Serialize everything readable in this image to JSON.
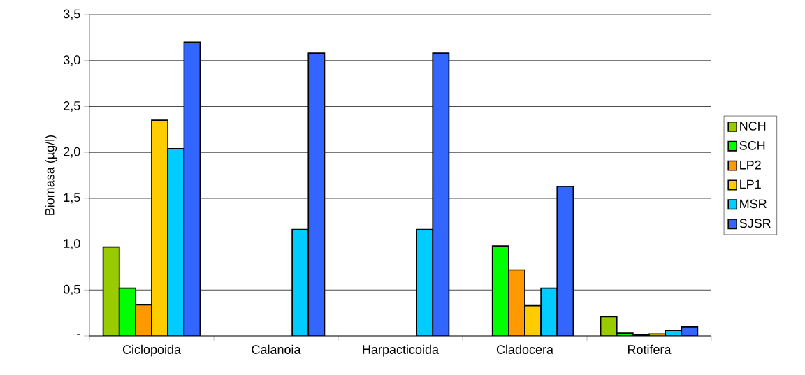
{
  "chart_data": {
    "type": "bar",
    "ylabel": "Biomasa (µg/l)",
    "categories": [
      "Ciclopoida",
      "Calanoia",
      "Harpacticoida",
      "Cladocera",
      "Rotifera"
    ],
    "series": [
      {
        "name": "NCH",
        "color": "#99cc00",
        "values": [
          0.97,
          null,
          null,
          null,
          0.21
        ]
      },
      {
        "name": "SCH",
        "color": "#00ff00",
        "values": [
          0.52,
          null,
          null,
          0.98,
          0.03
        ]
      },
      {
        "name": "LP2",
        "color": "#ff9900",
        "values": [
          0.34,
          null,
          null,
          0.72,
          0.01
        ]
      },
      {
        "name": "LP1",
        "color": "#ffcc00",
        "values": [
          2.35,
          null,
          null,
          0.33,
          0.02
        ]
      },
      {
        "name": "MSR",
        "color": "#00ccff",
        "values": [
          2.04,
          1.16,
          1.16,
          0.52,
          0.06
        ]
      },
      {
        "name": "SJSR",
        "color": "#3366ff",
        "values": [
          3.2,
          3.08,
          3.08,
          1.63,
          0.1
        ]
      }
    ],
    "ylim": [
      0,
      3.5
    ],
    "yticks": [
      {
        "value": 0,
        "label": "-"
      },
      {
        "value": 0.5,
        "label": "0,5"
      },
      {
        "value": 1,
        "label": "1,0"
      },
      {
        "value": 1.5,
        "label": "1,5"
      },
      {
        "value": 2,
        "label": "2,0"
      },
      {
        "value": 2.5,
        "label": "2,5"
      },
      {
        "value": 3,
        "label": "3,0"
      },
      {
        "value": 3.5,
        "label": "3,5"
      }
    ],
    "grid": "y",
    "legend": "right"
  }
}
